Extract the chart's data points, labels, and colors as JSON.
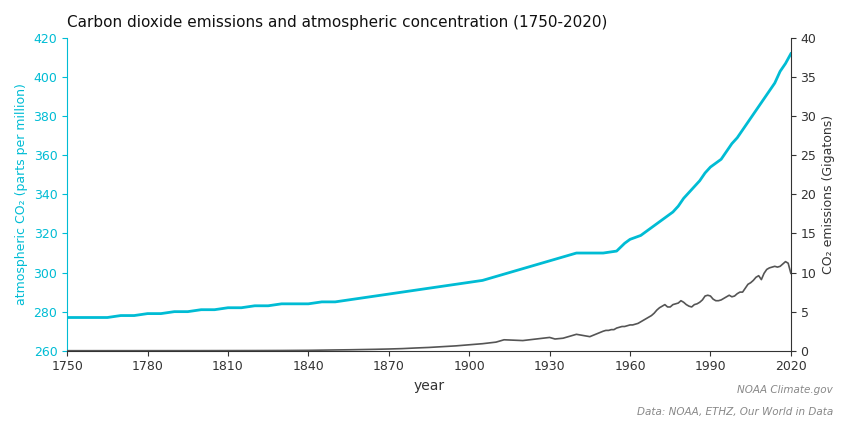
{
  "title": "Carbon dioxide emissions and atmospheric concentration (1750-2020)",
  "xlabel": "year",
  "ylabel_left": "atmospheric CO₂ (parts per million)",
  "ylabel_right": "CO₂ emissions (Gigatons)",
  "left_color": "#00bcd4",
  "right_color": "#555555",
  "xlim": [
    1750,
    2020
  ],
  "ylim_left": [
    260,
    420
  ],
  "ylim_right": [
    0,
    40
  ],
  "yticks_left": [
    260,
    280,
    300,
    320,
    340,
    360,
    380,
    400,
    420
  ],
  "yticks_right": [
    0,
    5,
    10,
    15,
    20,
    25,
    30,
    35,
    40
  ],
  "xticks": [
    1750,
    1780,
    1810,
    1840,
    1870,
    1900,
    1930,
    1960,
    1990,
    2020
  ],
  "footnote1": "NOAA Climate.gov",
  "footnote2": "Data: NOAA, ETHZ, Our World in Data",
  "background_color": "#ffffff",
  "co2_concentration": {
    "years": [
      1750,
      1755,
      1760,
      1765,
      1770,
      1775,
      1780,
      1785,
      1790,
      1795,
      1800,
      1805,
      1810,
      1815,
      1820,
      1825,
      1830,
      1835,
      1840,
      1845,
      1850,
      1855,
      1860,
      1865,
      1870,
      1875,
      1880,
      1885,
      1890,
      1895,
      1900,
      1905,
      1910,
      1915,
      1920,
      1925,
      1930,
      1935,
      1940,
      1945,
      1950,
      1955,
      1958,
      1960,
      1962,
      1964,
      1966,
      1968,
      1970,
      1972,
      1974,
      1976,
      1978,
      1980,
      1982,
      1984,
      1986,
      1988,
      1990,
      1992,
      1994,
      1996,
      1998,
      2000,
      2002,
      2004,
      2006,
      2008,
      2010,
      2012,
      2014,
      2016,
      2018,
      2020
    ],
    "values": [
      277,
      277,
      277,
      277,
      278,
      278,
      279,
      279,
      280,
      280,
      281,
      281,
      282,
      282,
      283,
      283,
      284,
      284,
      284,
      285,
      285,
      286,
      287,
      288,
      289,
      290,
      291,
      292,
      293,
      294,
      295,
      296,
      298,
      300,
      302,
      304,
      306,
      308,
      310,
      310,
      310,
      311,
      315,
      317,
      318,
      319,
      321,
      323,
      325,
      327,
      329,
      331,
      334,
      338,
      341,
      344,
      347,
      351,
      354,
      356,
      358,
      362,
      366,
      369,
      373,
      377,
      381,
      385,
      389,
      393,
      397,
      403,
      407,
      412
    ]
  },
  "co2_emissions": {
    "years": [
      1750,
      1760,
      1770,
      1780,
      1790,
      1800,
      1810,
      1820,
      1830,
      1840,
      1850,
      1855,
      1860,
      1865,
      1870,
      1875,
      1880,
      1885,
      1890,
      1895,
      1900,
      1905,
      1910,
      1913,
      1920,
      1925,
      1930,
      1932,
      1935,
      1938,
      1940,
      1945,
      1950,
      1951,
      1952,
      1953,
      1954,
      1955,
      1956,
      1957,
      1958,
      1959,
      1960,
      1961,
      1962,
      1963,
      1964,
      1965,
      1966,
      1967,
      1968,
      1969,
      1970,
      1971,
      1972,
      1973,
      1974,
      1975,
      1976,
      1977,
      1978,
      1979,
      1980,
      1981,
      1982,
      1983,
      1984,
      1985,
      1986,
      1987,
      1988,
      1989,
      1990,
      1991,
      1992,
      1993,
      1994,
      1995,
      1996,
      1997,
      1998,
      1999,
      2000,
      2001,
      2002,
      2003,
      2004,
      2005,
      2006,
      2007,
      2008,
      2009,
      2010,
      2011,
      2012,
      2013,
      2014,
      2015,
      2016,
      2017,
      2018,
      2019,
      2020
    ],
    "values": [
      0.003,
      0.004,
      0.005,
      0.006,
      0.008,
      0.01,
      0.015,
      0.02,
      0.03,
      0.05,
      0.1,
      0.12,
      0.15,
      0.18,
      0.22,
      0.27,
      0.35,
      0.42,
      0.52,
      0.62,
      0.76,
      0.9,
      1.1,
      1.4,
      1.3,
      1.5,
      1.7,
      1.5,
      1.6,
      1.9,
      2.1,
      1.8,
      2.5,
      2.6,
      2.6,
      2.7,
      2.7,
      2.9,
      3.0,
      3.1,
      3.1,
      3.2,
      3.3,
      3.3,
      3.4,
      3.5,
      3.7,
      3.9,
      4.1,
      4.3,
      4.5,
      4.8,
      5.2,
      5.5,
      5.7,
      5.9,
      5.6,
      5.6,
      5.9,
      6.0,
      6.1,
      6.4,
      6.2,
      5.9,
      5.7,
      5.6,
      5.9,
      6.0,
      6.2,
      6.5,
      7.0,
      7.1,
      7.0,
      6.6,
      6.4,
      6.4,
      6.5,
      6.7,
      6.9,
      7.1,
      6.9,
      7.0,
      7.3,
      7.5,
      7.5,
      8.0,
      8.5,
      8.7,
      9.0,
      9.4,
      9.6,
      9.1,
      9.9,
      10.4,
      10.6,
      10.7,
      10.8,
      10.7,
      10.8,
      11.1,
      11.4,
      11.2,
      9.9
    ]
  }
}
